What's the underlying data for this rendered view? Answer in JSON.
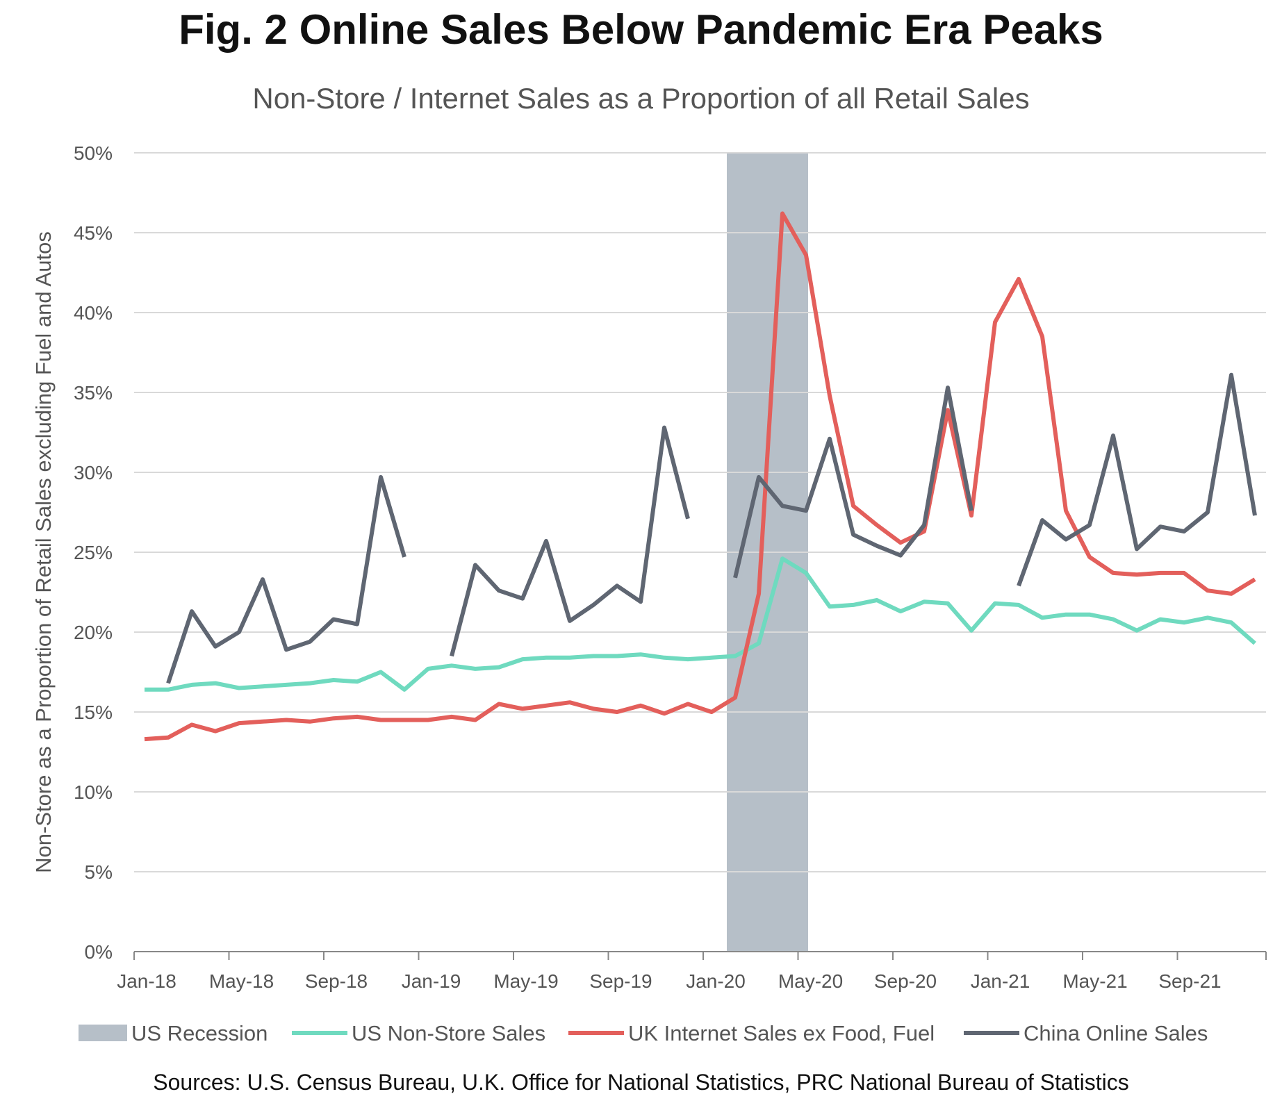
{
  "title": "Fig. 2 Online Sales Below Pandemic Era Peaks",
  "subtitle": "Non-Store / Internet Sales as a Proportion of all Retail Sales",
  "source": "Sources: U.S. Census Bureau, U.K. Office for National Statistics, PRC National Bureau of Statistics",
  "colors": {
    "us": "#6fdabf",
    "uk": "#e35f5b",
    "china": "#5f6672",
    "recession": "#b6bfc8",
    "grid": "#d9d9d9",
    "axis": "#888888",
    "label": "#555555"
  },
  "chart_data": {
    "type": "line",
    "title": "Non-Store / Internet Sales as a Proportion of all Retail Sales",
    "ylabel": "Non-Store as a Proportion of Retail Sales excluding Fuel and Autos",
    "xlabel": "",
    "ylim": [
      0,
      50
    ],
    "yticks": [
      "0%",
      "5%",
      "10%",
      "15%",
      "20%",
      "25%",
      "30%",
      "35%",
      "40%",
      "45%",
      "50%"
    ],
    "xticks": [
      "Jan-18",
      "May-18",
      "Sep-18",
      "Jan-19",
      "May-19",
      "Sep-19",
      "Jan-20",
      "May-20",
      "Sep-20",
      "Jan-21",
      "May-21",
      "Sep-21"
    ],
    "xtick_month_index": [
      0,
      4,
      8,
      12,
      16,
      20,
      24,
      28,
      32,
      36,
      40,
      44
    ],
    "months": [
      "Jan-18",
      "Feb-18",
      "Mar-18",
      "Apr-18",
      "May-18",
      "Jun-18",
      "Jul-18",
      "Aug-18",
      "Sep-18",
      "Oct-18",
      "Nov-18",
      "Dec-18",
      "Jan-19",
      "Feb-19",
      "Mar-19",
      "Apr-19",
      "May-19",
      "Jun-19",
      "Jul-19",
      "Aug-19",
      "Sep-19",
      "Oct-19",
      "Nov-19",
      "Dec-19",
      "Jan-20",
      "Feb-20",
      "Mar-20",
      "Apr-20",
      "May-20",
      "Jun-20",
      "Jul-20",
      "Aug-20",
      "Sep-20",
      "Oct-20",
      "Nov-20",
      "Dec-20",
      "Jan-21",
      "Feb-21",
      "Mar-21",
      "Apr-21",
      "May-21",
      "Jun-21",
      "Jul-21",
      "Aug-21",
      "Sep-21",
      "Oct-21",
      "Nov-21",
      "Dec-21"
    ],
    "recession": {
      "label": "US Recession",
      "start_month_index": 25,
      "end_month_index": 28
    },
    "series": [
      {
        "name": "US Non-Store Sales",
        "values": [
          16.4,
          16.4,
          16.7,
          16.8,
          16.5,
          16.6,
          16.7,
          16.8,
          17.0,
          16.9,
          17.5,
          16.4,
          17.7,
          17.9,
          17.7,
          17.8,
          18.3,
          18.4,
          18.4,
          18.5,
          18.5,
          18.6,
          18.4,
          18.3,
          18.4,
          18.5,
          19.3,
          24.6,
          23.7,
          21.6,
          21.7,
          22.0,
          21.3,
          21.9,
          21.8,
          20.1,
          21.8,
          21.7,
          20.9,
          21.1,
          21.1,
          20.8,
          20.1,
          20.8,
          20.6,
          20.9,
          20.6,
          19.3
        ]
      },
      {
        "name": "UK Internet Sales ex Food, Fuel",
        "values": [
          13.3,
          13.4,
          14.2,
          13.8,
          14.3,
          14.4,
          14.5,
          14.4,
          14.6,
          14.7,
          14.5,
          14.5,
          14.5,
          14.7,
          14.5,
          15.5,
          15.2,
          15.4,
          15.6,
          15.2,
          15.0,
          15.4,
          14.9,
          15.5,
          15.0,
          15.9,
          22.4,
          46.2,
          43.6,
          34.8,
          27.9,
          26.7,
          25.6,
          26.3,
          33.9,
          27.3,
          39.4,
          42.1,
          38.5,
          27.6,
          24.7,
          23.7,
          23.6,
          23.7,
          23.7,
          22.6,
          22.4,
          23.3
        ]
      },
      {
        "name": "China Online Sales",
        "values": [
          null,
          16.8,
          21.3,
          19.1,
          20.0,
          23.3,
          18.9,
          19.4,
          20.8,
          20.5,
          29.7,
          24.7,
          null,
          18.5,
          24.2,
          22.6,
          22.1,
          25.7,
          20.7,
          21.7,
          22.9,
          21.9,
          32.8,
          27.1,
          null,
          23.4,
          29.7,
          27.9,
          27.6,
          32.1,
          26.1,
          25.4,
          24.8,
          26.7,
          35.3,
          27.6,
          null,
          22.9,
          27.0,
          25.8,
          26.7,
          32.3,
          25.2,
          26.6,
          26.3,
          27.5,
          36.1,
          27.3
        ]
      }
    ],
    "legend": [
      "US Recession",
      "US Non-Store Sales",
      "UK Internet Sales ex Food, Fuel",
      "China Online Sales"
    ],
    "legend_position": "bottom"
  }
}
